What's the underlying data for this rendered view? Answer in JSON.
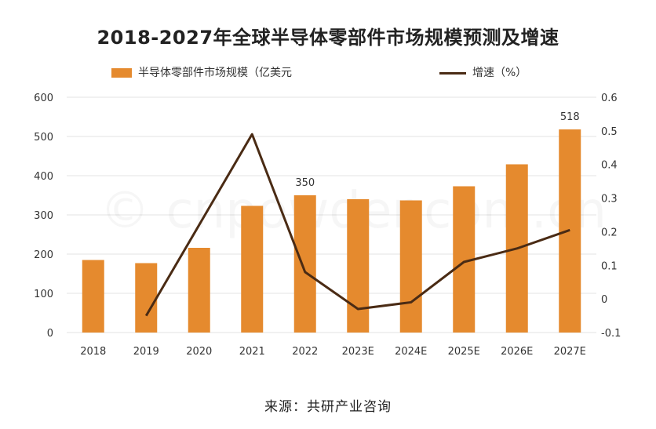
{
  "chart_data": {
    "type": "bar",
    "title": "2018-2027年全球半导体零部件市场规模预测及增速",
    "categories": [
      "2018",
      "2019",
      "2020",
      "2021",
      "2022",
      "2023E",
      "2024E",
      "2025E",
      "2026E",
      "2027E"
    ],
    "series": [
      {
        "name": "半导体零部件市场规模（亿美元",
        "type": "bar",
        "axis": "left",
        "values": [
          185,
          177,
          216,
          323,
          350,
          340,
          337,
          373,
          429,
          518
        ],
        "data_labels": {
          "2022": "350",
          "2027E": "518"
        }
      },
      {
        "name": "增速（%）",
        "type": "line",
        "axis": "right",
        "values": [
          null,
          -0.05,
          0.22,
          0.49,
          0.08,
          -0.03,
          -0.01,
          0.11,
          0.15,
          0.205
        ]
      }
    ],
    "y_left": {
      "ylim": [
        0,
        600
      ],
      "ticks": [
        "0",
        "100",
        "200",
        "300",
        "400",
        "500",
        "600"
      ]
    },
    "y_right": {
      "ylim": [
        -0.1,
        0.6
      ],
      "ticks": [
        "-0.1",
        "0",
        "0.1",
        "0.2",
        "0.3",
        "0.4",
        "0.5",
        "0.6"
      ]
    },
    "grid": true,
    "legend_position": "top",
    "colors": {
      "bar": "#E58A2E",
      "line": "#4A2B14",
      "grid": "#E3E3E3"
    }
  },
  "watermark": "© cnpowder.com.cn",
  "source": "来源：共研产业咨询"
}
